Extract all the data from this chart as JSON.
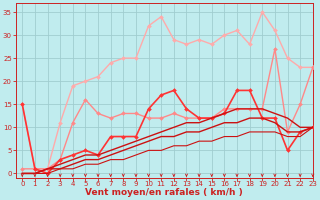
{
  "background_color": "#c0ecee",
  "grid_color": "#a0cdd0",
  "xlabel": "Vent moyen/en rafales ( km/h )",
  "x_ticks": [
    0,
    1,
    2,
    3,
    4,
    5,
    6,
    7,
    8,
    9,
    10,
    11,
    12,
    13,
    14,
    15,
    16,
    17,
    18,
    19,
    20,
    21,
    22,
    23
  ],
  "ylim": [
    -1,
    37
  ],
  "xlim": [
    -0.5,
    23
  ],
  "yticks": [
    0,
    5,
    10,
    15,
    20,
    25,
    30,
    35
  ],
  "lines": [
    {
      "x": [
        0,
        1,
        2,
        3,
        4,
        5,
        6,
        7,
        8,
        9,
        10,
        11,
        12,
        13,
        14,
        15,
        16,
        17,
        18,
        19,
        20,
        21,
        22,
        23
      ],
      "y": [
        15,
        1,
        1,
        11,
        19,
        20,
        21,
        24,
        25,
        25,
        32,
        34,
        29,
        28,
        29,
        28,
        30,
        31,
        28,
        35,
        31,
        25,
        23,
        23
      ],
      "color": "#ffaaaa",
      "lw": 1.0,
      "marker": "D",
      "markersize": 2.0
    },
    {
      "x": [
        0,
        1,
        2,
        3,
        4,
        5,
        6,
        7,
        8,
        9,
        10,
        11,
        12,
        13,
        14,
        15,
        16,
        17,
        18,
        19,
        20,
        21,
        22,
        23
      ],
      "y": [
        1,
        1,
        1,
        3,
        11,
        16,
        13,
        12,
        13,
        13,
        12,
        12,
        13,
        12,
        12,
        12,
        14,
        14,
        14,
        14,
        27,
        9,
        15,
        23
      ],
      "color": "#ff8888",
      "lw": 1.0,
      "marker": "D",
      "markersize": 2.0
    },
    {
      "x": [
        0,
        1,
        2,
        3,
        4,
        5,
        6,
        7,
        8,
        9,
        10,
        11,
        12,
        13,
        14,
        15,
        16,
        17,
        18,
        19,
        20,
        21,
        22,
        23
      ],
      "y": [
        15,
        1,
        0,
        3,
        4,
        5,
        4,
        8,
        8,
        8,
        14,
        17,
        18,
        14,
        12,
        12,
        13,
        18,
        18,
        12,
        12,
        5,
        9,
        10
      ],
      "color": "#ff3333",
      "lw": 1.2,
      "marker": "D",
      "markersize": 2.0
    },
    {
      "x": [
        0,
        1,
        2,
        3,
        4,
        5,
        6,
        7,
        8,
        9,
        10,
        11,
        12,
        13,
        14,
        15,
        16,
        17,
        18,
        19,
        20,
        21,
        22,
        23
      ],
      "y": [
        0,
        0,
        1,
        2,
        3,
        4,
        4,
        5,
        6,
        7,
        8,
        9,
        10,
        11,
        11,
        12,
        13,
        14,
        14,
        14,
        13,
        12,
        10,
        10
      ],
      "color": "#cc1111",
      "lw": 1.0,
      "marker": null,
      "markersize": 0
    },
    {
      "x": [
        0,
        1,
        2,
        3,
        4,
        5,
        6,
        7,
        8,
        9,
        10,
        11,
        12,
        13,
        14,
        15,
        16,
        17,
        18,
        19,
        20,
        21,
        22,
        23
      ],
      "y": [
        0,
        0,
        1,
        1,
        2,
        3,
        3,
        4,
        5,
        6,
        7,
        8,
        8,
        9,
        9,
        10,
        11,
        11,
        12,
        12,
        11,
        9,
        9,
        10
      ],
      "color": "#cc1111",
      "lw": 1.0,
      "marker": null,
      "markersize": 0
    },
    {
      "x": [
        0,
        1,
        2,
        3,
        4,
        5,
        6,
        7,
        8,
        9,
        10,
        11,
        12,
        13,
        14,
        15,
        16,
        17,
        18,
        19,
        20,
        21,
        22,
        23
      ],
      "y": [
        0,
        0,
        0,
        1,
        1,
        2,
        2,
        3,
        3,
        4,
        5,
        5,
        6,
        6,
        7,
        7,
        8,
        8,
        9,
        9,
        9,
        8,
        8,
        10
      ],
      "color": "#cc1111",
      "lw": 0.8,
      "marker": null,
      "markersize": 0
    }
  ],
  "arrow_color": "#cc2222",
  "tick_color": "#cc2222",
  "label_color": "#cc2222",
  "tick_fontsize": 5.0,
  "label_fontsize": 6.5
}
